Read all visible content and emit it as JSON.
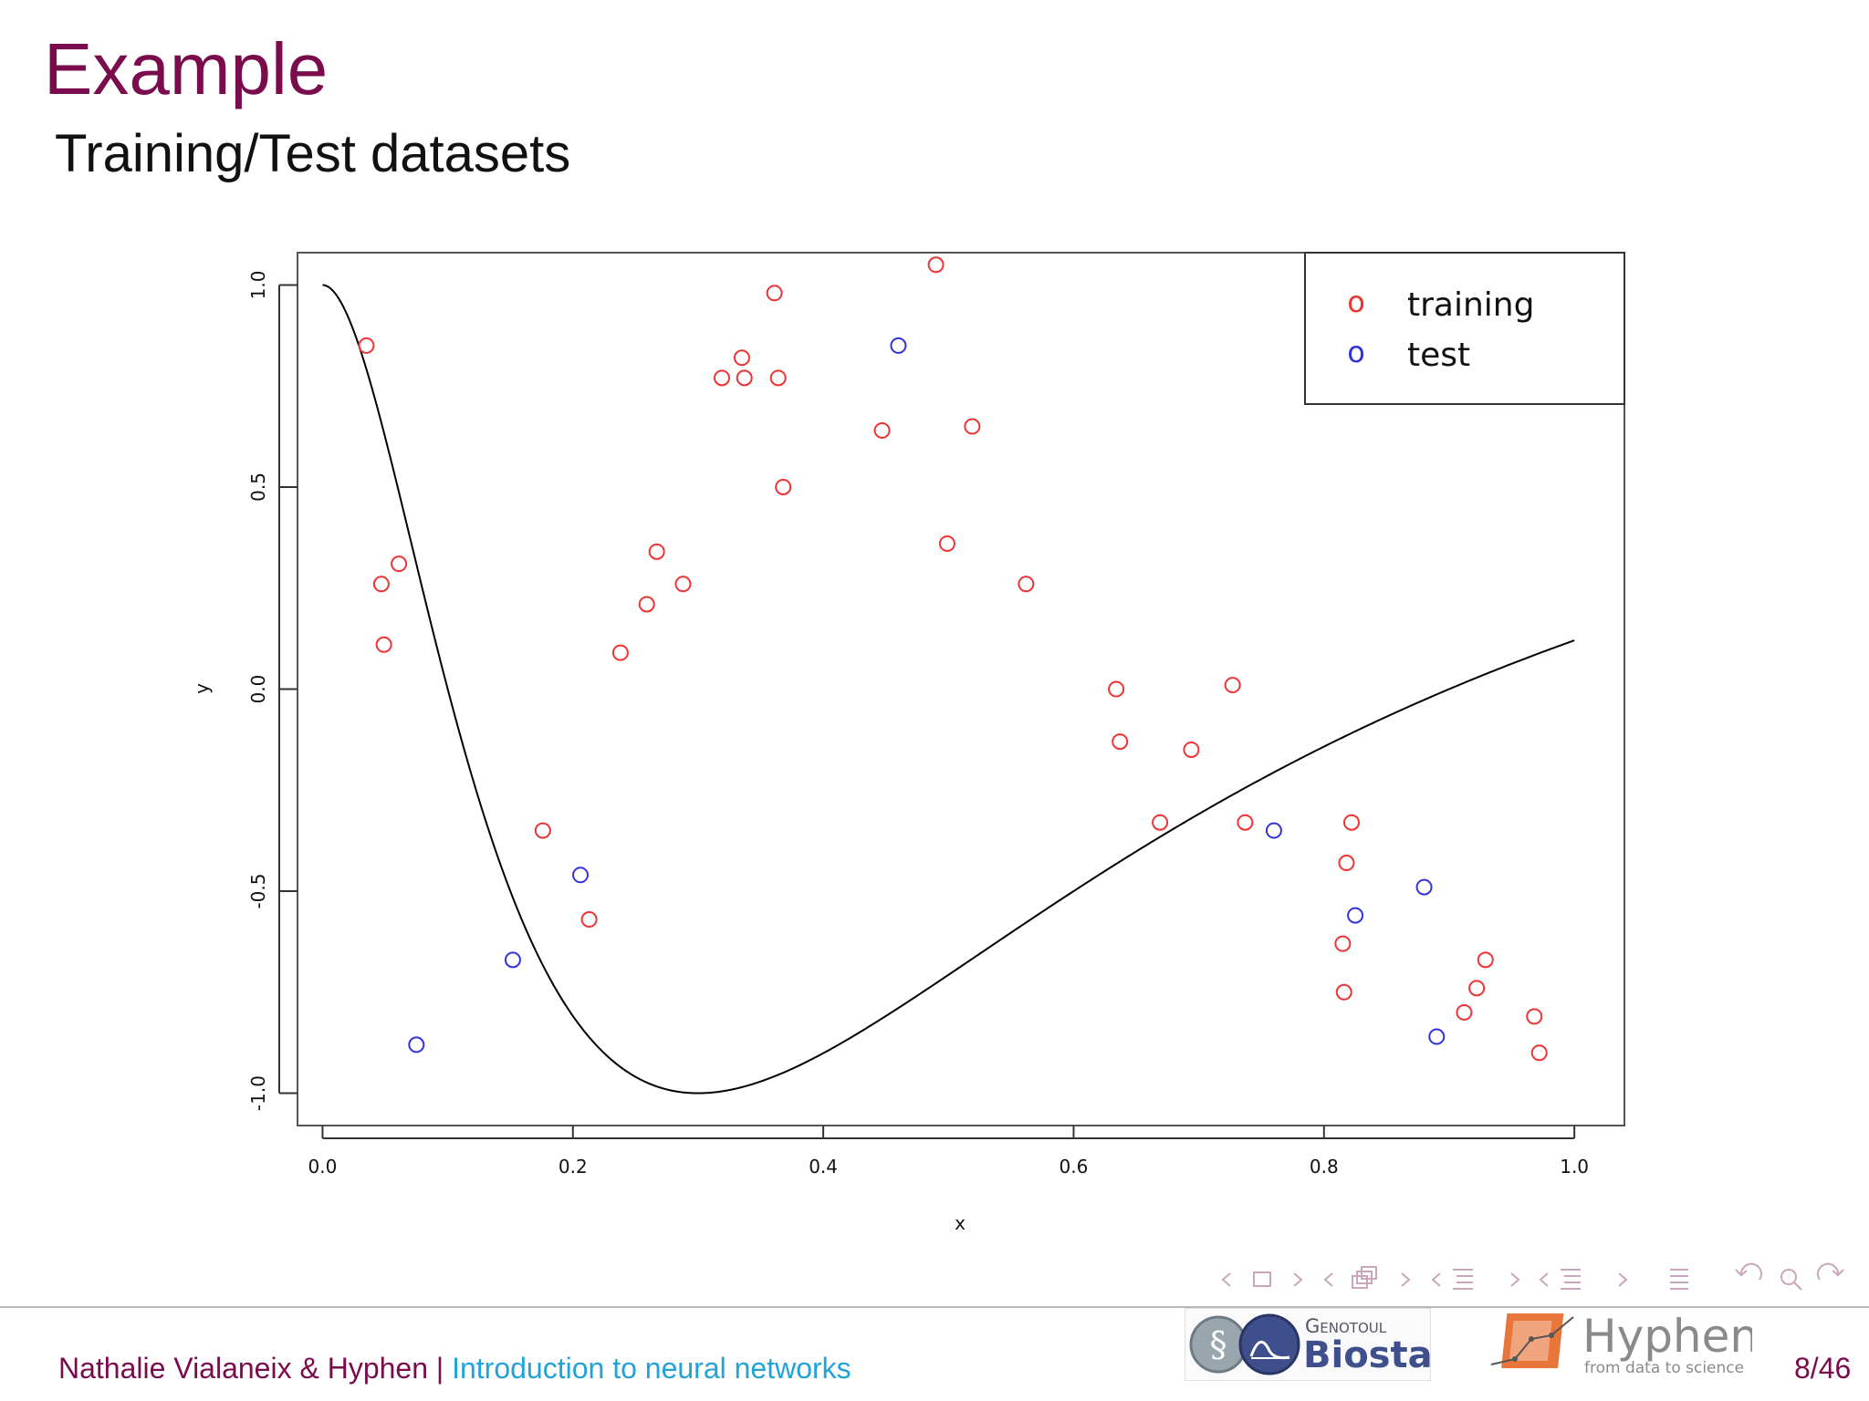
{
  "slide": {
    "title": "Example",
    "subtitle": "Training/Test datasets"
  },
  "footer": {
    "author": "Nathalie Vialaneix & Hyphen",
    "separator": "|",
    "talk": "Introduction to neural networks",
    "page": "8/46",
    "logo_biostat_top": "Genotoul",
    "logo_biostat_bottom": "Biostat",
    "logo_hyphen_name": "Hyphen",
    "logo_hyphen_tagline": "from data to science"
  },
  "colors": {
    "title": "#7a0c4e",
    "link": "#22a3d8",
    "training": "#ee3333",
    "test": "#3333dd",
    "curve": "#000000"
  },
  "chart_data": {
    "type": "scatter",
    "title": "",
    "xlabel": "x",
    "ylabel": "y",
    "xlim": [
      -0.02,
      1.04
    ],
    "ylim": [
      -1.08,
      1.08
    ],
    "xticks": [
      "0.0",
      "0.2",
      "0.4",
      "0.6",
      "0.8",
      "1.0"
    ],
    "yticks": [
      "-1.0",
      "-0.5",
      "0.0",
      "0.5",
      "1.0"
    ],
    "grid": false,
    "legend": {
      "position": "top-right",
      "marker": "o",
      "entries": [
        "training",
        "test"
      ]
    },
    "series": [
      {
        "name": "training",
        "color": "#ee3333",
        "points": [
          [
            0.035,
            0.85
          ],
          [
            0.047,
            0.26
          ],
          [
            0.049,
            0.11
          ],
          [
            0.061,
            0.31
          ],
          [
            0.176,
            -0.35
          ],
          [
            0.213,
            -0.57
          ],
          [
            0.238,
            0.09
          ],
          [
            0.259,
            0.21
          ],
          [
            0.267,
            0.34
          ],
          [
            0.288,
            0.26
          ],
          [
            0.319,
            0.77
          ],
          [
            0.335,
            0.82
          ],
          [
            0.337,
            0.77
          ],
          [
            0.361,
            0.98
          ],
          [
            0.364,
            0.77
          ],
          [
            0.368,
            0.5
          ],
          [
            0.447,
            0.64
          ],
          [
            0.49,
            1.05
          ],
          [
            0.499,
            0.36
          ],
          [
            0.519,
            0.65
          ],
          [
            0.562,
            0.26
          ],
          [
            0.634,
            0.0
          ],
          [
            0.637,
            -0.13
          ],
          [
            0.669,
            -0.33
          ],
          [
            0.694,
            -0.15
          ],
          [
            0.727,
            0.01
          ],
          [
            0.737,
            -0.33
          ],
          [
            0.815,
            -0.63
          ],
          [
            0.816,
            -0.75
          ],
          [
            0.818,
            -0.43
          ],
          [
            0.822,
            -0.33
          ],
          [
            0.912,
            -0.8
          ],
          [
            0.922,
            -0.74
          ],
          [
            0.929,
            -0.67
          ],
          [
            0.968,
            -0.81
          ],
          [
            0.972,
            -0.9
          ]
        ]
      },
      {
        "name": "test",
        "color": "#3333dd",
        "points": [
          [
            0.075,
            -0.88
          ],
          [
            0.152,
            -0.67
          ],
          [
            0.206,
            -0.46
          ],
          [
            0.46,
            0.85
          ],
          [
            0.76,
            -0.35
          ],
          [
            0.825,
            -0.56
          ],
          [
            0.88,
            -0.49
          ],
          [
            0.89,
            -0.86
          ]
        ]
      }
    ]
  }
}
